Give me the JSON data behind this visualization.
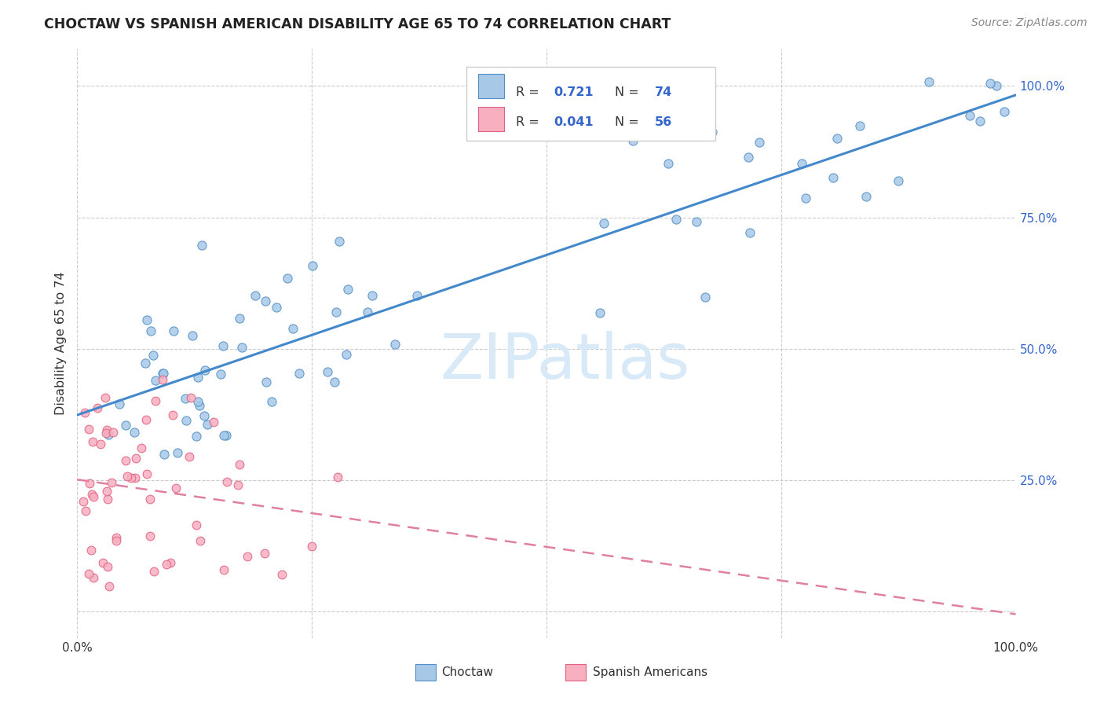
{
  "title": "CHOCTAW VS SPANISH AMERICAN DISABILITY AGE 65 TO 74 CORRELATION CHART",
  "source": "Source: ZipAtlas.com",
  "ylabel": "Disability Age 65 to 74",
  "R_choctaw": 0.721,
  "N_choctaw": 74,
  "R_spanish": 0.041,
  "N_spanish": 56,
  "choctaw_fill_color": "#a8c8e8",
  "choctaw_edge_color": "#5090c8",
  "spanish_fill_color": "#f8b0c0",
  "spanish_edge_color": "#e06080",
  "choctaw_line_color": "#4488cc",
  "spanish_line_color": "#e080a0",
  "background_color": "#ffffff",
  "grid_color": "#cccccc",
  "title_color": "#222222",
  "axis_color": "#333333",
  "right_tick_color": "#3366cc",
  "legend_text_color": "#333333",
  "legend_value_color": "#3366cc",
  "watermark_color": "#d8eaf8",
  "watermark_text": "ZIPatlas",
  "seed_choctaw": 42,
  "seed_spanish": 99
}
